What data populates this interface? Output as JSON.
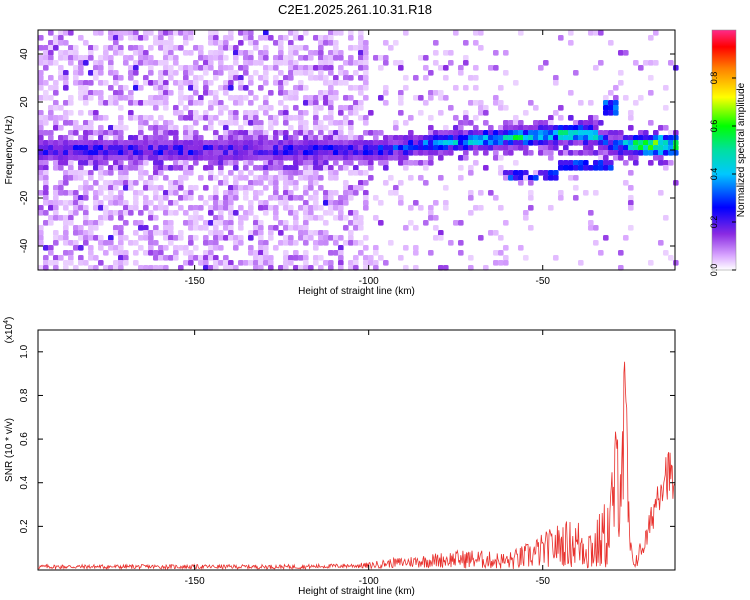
{
  "figure_title": "C2E1.2025.261.10.31.R18",
  "chart_data": [
    {
      "type": "heatmap",
      "title": "C2E1.2025.261.10.31.R18",
      "xlabel": "Height of straight line (km)",
      "ylabel": "Frequency (Hz)",
      "xlim": [
        -195,
        -12
      ],
      "ylim": [
        -50,
        50
      ],
      "xticks": [
        -150,
        -100,
        -50
      ],
      "yticks": [
        -40,
        -20,
        0,
        20,
        40
      ],
      "colorbar": {
        "label": "Normalized spectral amplitude",
        "range": [
          0,
          1
        ],
        "ticks": [
          0,
          0.2,
          0.4,
          0.6,
          0.8
        ],
        "tick_labels": [
          "0.0",
          "0.2",
          "0.4",
          "0.6",
          "0.8"
        ],
        "colormap": "rainbow"
      },
      "ridge": {
        "description": "main spectral ridge: center frequency and amplitude vs height",
        "x": [
          -195,
          -180,
          -165,
          -150,
          -135,
          -120,
          -110,
          -100,
          -90,
          -80,
          -70,
          -60,
          -50,
          -40,
          -35,
          -30,
          -25,
          -20,
          -15,
          -12
        ],
        "freq": [
          0,
          0,
          0,
          0,
          0,
          0,
          0,
          0,
          1,
          3,
          4,
          5,
          6,
          7,
          6,
          2,
          2,
          2,
          2,
          2
        ],
        "amplitude": [
          0.3,
          0.3,
          0.3,
          0.3,
          0.25,
          0.3,
          0.3,
          0.3,
          0.35,
          0.45,
          0.5,
          0.55,
          0.55,
          0.6,
          0.5,
          0.3,
          0.6,
          0.9,
          0.9,
          0.7
        ]
      },
      "secondary_features": [
        {
          "x": [
            -62,
            -45
          ],
          "freq": -10,
          "amplitude": 0.3
        },
        {
          "x": [
            -45,
            -30
          ],
          "freq": -6,
          "amplitude": 0.3
        },
        {
          "x": [
            -32,
            -28
          ],
          "freq": 18,
          "amplitude": 0.35
        }
      ]
    },
    {
      "type": "line",
      "title": "",
      "xlabel": "Height of straight line (km)",
      "ylabel": "SNR (10 * v/v)",
      "y_multiplier": "(x10^4)",
      "xlim": [
        -195,
        -12
      ],
      "ylim": [
        0,
        1.1
      ],
      "xticks": [
        -150,
        -100,
        -50
      ],
      "yticks": [
        0.2,
        0.4,
        0.6,
        0.8,
        1.0
      ],
      "series": [
        {
          "name": "SNR",
          "color": "#e8302c",
          "x": [
            -195,
            -180,
            -160,
            -140,
            -120,
            -105,
            -100,
            -95,
            -90,
            -80,
            -75,
            -70,
            -65,
            -60,
            -55,
            -50,
            -45,
            -40,
            -35,
            -31,
            -29,
            -27,
            -26,
            -25,
            -24,
            -23,
            -20,
            -17,
            -15,
            -13,
            -12
          ],
          "mean": [
            0.015,
            0.015,
            0.015,
            0.015,
            0.015,
            0.02,
            0.02,
            0.03,
            0.035,
            0.045,
            0.05,
            0.05,
            0.045,
            0.04,
            0.06,
            0.09,
            0.12,
            0.12,
            0.1,
            0.18,
            0.4,
            0.6,
            0.55,
            0.1,
            0.03,
            0.05,
            0.15,
            0.35,
            0.45,
            0.43,
            0.35
          ],
          "amp": [
            0.01,
            0.01,
            0.01,
            0.01,
            0.01,
            0.01,
            0.015,
            0.02,
            0.025,
            0.035,
            0.04,
            0.045,
            0.04,
            0.04,
            0.06,
            0.08,
            0.1,
            0.12,
            0.12,
            0.18,
            0.28,
            0.45,
            0.45,
            0.08,
            0.02,
            0.04,
            0.06,
            0.1,
            0.12,
            0.12,
            0.1
          ]
        }
      ]
    }
  ]
}
